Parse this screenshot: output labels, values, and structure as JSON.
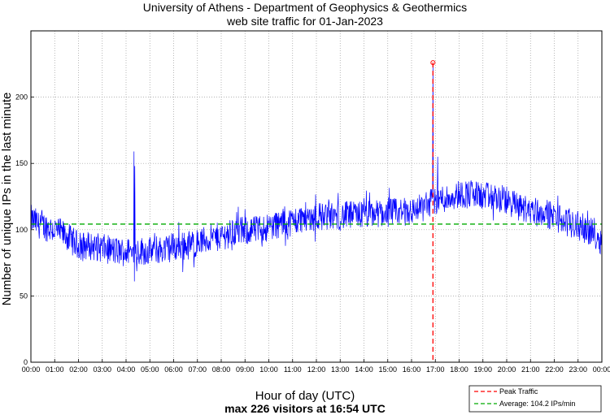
{
  "chart_data": {
    "type": "line",
    "title": "University of Athens - Department of Geophysics & Geothermics",
    "subtitle": "web site traffic for 01-Jan-2023",
    "xlabel": "Hour of day (UTC)",
    "ylabel": "Number of unique IPs in the last minute",
    "caption": "max 226 visitors at 16:54 UTC",
    "x_tick_labels": [
      "00:00",
      "01:00",
      "02:00",
      "03:00",
      "04:00",
      "05:00",
      "06:00",
      "07:00",
      "08:00",
      "09:00",
      "10:00",
      "11:00",
      "12:00",
      "13:00",
      "14:00",
      "15:00",
      "16:00",
      "17:00",
      "18:00",
      "19:00",
      "20:00",
      "21:00",
      "22:00",
      "23:00",
      "00:00"
    ],
    "xlim": [
      0,
      24
    ],
    "ylim": [
      0,
      250
    ],
    "y_ticks": [
      0,
      50,
      100,
      150,
      200
    ],
    "grid": true,
    "legend_position": "bottom-right",
    "series": [
      {
        "name": "",
        "color": "#0000ff",
        "trend_x": [
          0,
          0.25,
          0.5,
          1,
          1.5,
          2,
          2.5,
          3,
          3.5,
          4,
          4.5,
          5,
          5.5,
          6,
          6.5,
          7,
          7.5,
          8,
          8.5,
          9,
          9.5,
          10,
          10.5,
          11,
          11.5,
          12,
          12.5,
          13,
          13.5,
          14,
          14.5,
          15,
          15.5,
          16,
          16.5,
          16.9,
          17.5,
          18,
          18.5,
          19,
          19.5,
          20,
          20.5,
          21,
          21.5,
          22,
          22.5,
          23,
          23.5,
          24
        ],
        "trend_y": [
          108,
          105,
          103,
          100,
          95,
          88,
          88,
          86,
          84,
          83,
          84,
          84,
          85,
          87,
          88,
          90,
          93,
          95,
          98,
          99,
          100,
          102,
          105,
          106,
          109,
          110,
          110,
          110,
          111,
          111,
          112,
          113,
          113,
          114,
          117,
          122,
          124,
          127,
          127,
          125,
          124,
          122,
          117,
          115,
          113,
          110,
          106,
          103,
          99,
          92
        ],
        "spikes": [
          {
            "x": 4.33,
            "y": 159
          },
          {
            "x": 4.36,
            "y": 148
          },
          {
            "x": 16.9,
            "y": 226
          },
          {
            "x": 17.1,
            "y": 155
          }
        ]
      }
    ],
    "peak": {
      "x": 16.9,
      "y": 226,
      "color": "#ff0000"
    },
    "average": {
      "y": 104.2,
      "color": "#00aa00"
    },
    "legend": [
      {
        "label": "Peak Traffic",
        "color": "#ff0000",
        "style": "dashed"
      },
      {
        "label": "Average: 104.2 IPs/min",
        "color": "#00aa00",
        "style": "dashed"
      }
    ]
  }
}
